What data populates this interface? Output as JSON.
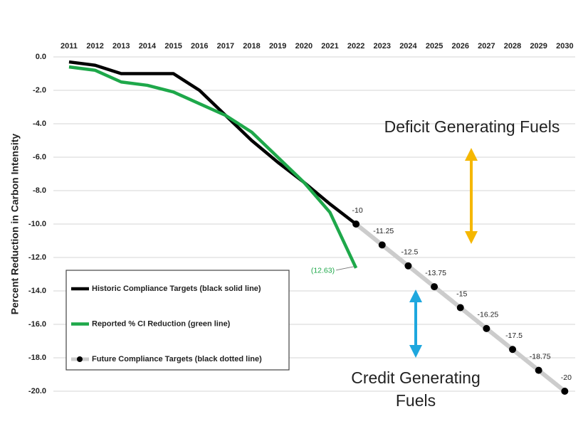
{
  "chart_data": {
    "type": "line",
    "y_label": "Percent Reduction in Carbon Intensity",
    "x": [
      2011,
      2012,
      2013,
      2014,
      2015,
      2016,
      2017,
      2018,
      2019,
      2020,
      2021,
      2022,
      2023,
      2024,
      2025,
      2026,
      2027,
      2028,
      2029,
      2030
    ],
    "xlim": [
      2010.4,
      2030.4
    ],
    "xticks": [
      2011,
      2012,
      2013,
      2014,
      2015,
      2016,
      2017,
      2018,
      2019,
      2020,
      2021,
      2022,
      2023,
      2024,
      2025,
      2026,
      2027,
      2028,
      2029,
      2030
    ],
    "ylim": [
      0,
      -20
    ],
    "yticks": [
      {
        "value": 0,
        "label": "0.0"
      },
      {
        "value": -2,
        "label": "-2.0"
      },
      {
        "value": -4,
        "label": "-4.0"
      },
      {
        "value": -6,
        "label": "-6.0"
      },
      {
        "value": -8,
        "label": "-8.0"
      },
      {
        "value": -10,
        "label": "-10.0"
      },
      {
        "value": -12,
        "label": "-12.0"
      },
      {
        "value": -14,
        "label": "-14.0"
      },
      {
        "value": -16,
        "label": "-16.0"
      },
      {
        "value": -18,
        "label": "-18.0"
      },
      {
        "value": -20,
        "label": "-20.0"
      }
    ],
    "grid": true,
    "legend": "lower left",
    "series": [
      {
        "name": "Historic Compliance Targets (black solid line)",
        "color": "#000000",
        "values": [
          -0.3,
          -0.5,
          -1.0,
          -1.0,
          -1.0,
          -2.0,
          -3.5,
          -5.0,
          -6.3,
          -7.5,
          -8.8,
          -10,
          null,
          null,
          null,
          null,
          null,
          null,
          null,
          null
        ]
      },
      {
        "name": "Reported % CI Reduction (green line)",
        "color": "#1ea84a",
        "values": [
          -0.6,
          -0.8,
          -1.5,
          -1.7,
          -2.1,
          -2.8,
          -3.5,
          -4.5,
          -6.0,
          -7.5,
          -9.3,
          -12.63,
          null,
          null,
          null,
          null,
          null,
          null,
          null,
          null
        ],
        "value_labels": [
          null,
          null,
          null,
          null,
          null,
          null,
          null,
          null,
          null,
          null,
          null,
          "(12.63)",
          null,
          null,
          null,
          null,
          null,
          null,
          null,
          null
        ]
      },
      {
        "name": "Future Compliance Targets (black dotted line)",
        "color": "#000000",
        "line_color": "#cccccc",
        "markers": true,
        "data_labels": true,
        "values": [
          null,
          null,
          null,
          null,
          null,
          null,
          null,
          null,
          null,
          null,
          null,
          -10,
          -11.25,
          -12.5,
          -13.75,
          -15,
          -16.25,
          -17.5,
          -18.75,
          -20
        ]
      }
    ],
    "annotations": [
      {
        "text": [
          "Deficit Generating Fuels"
        ]
      },
      {
        "text": [
          "Credit Generating",
          "Fuels"
        ]
      }
    ]
  }
}
